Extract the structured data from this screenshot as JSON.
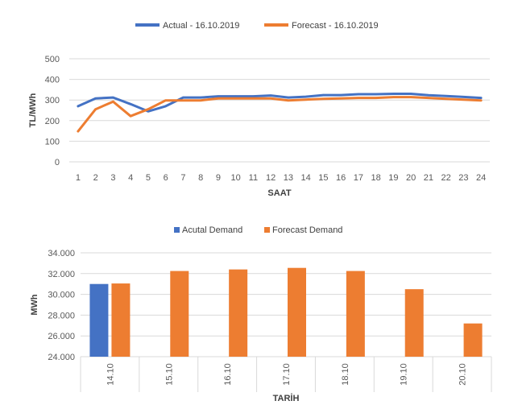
{
  "chart_data": [
    {
      "type": "line",
      "xlabel": "SAAT",
      "ylabel": "TL/MWh",
      "ylim": [
        0,
        500
      ],
      "yticks": [
        0,
        100,
        200,
        300,
        400,
        500
      ],
      "grid": true,
      "legend": "top",
      "x": [
        1,
        2,
        3,
        4,
        5,
        6,
        7,
        8,
        9,
        10,
        11,
        12,
        13,
        14,
        15,
        16,
        17,
        18,
        19,
        20,
        21,
        22,
        23,
        24
      ],
      "series": [
        {
          "name": "Actual - 16.10.2019",
          "color": "#4472C4",
          "values": [
            270,
            308,
            312,
            280,
            245,
            270,
            312,
            312,
            318,
            318,
            318,
            322,
            312,
            316,
            324,
            324,
            328,
            328,
            330,
            330,
            323,
            319,
            315,
            310
          ]
        },
        {
          "name": "Forecast - 16.10.2019",
          "color": "#ED7D31",
          "values": [
            148,
            255,
            292,
            222,
            255,
            298,
            298,
            298,
            308,
            308,
            308,
            308,
            298,
            302,
            306,
            308,
            310,
            310,
            314,
            314,
            310,
            306,
            302,
            298
          ]
        }
      ]
    },
    {
      "type": "bar",
      "xlabel": "TARİH",
      "ylabel": "MWh",
      "ylim": [
        24000,
        34000
      ],
      "yticks": [
        24000,
        26000,
        28000,
        30000,
        32000,
        34000
      ],
      "ytick_labels": [
        "24.000",
        "26.000",
        "28.000",
        "30.000",
        "32.000",
        "34.000"
      ],
      "grid": true,
      "legend": "top",
      "categories": [
        "14.10",
        "15.10",
        "16.10",
        "17.10",
        "18.10",
        "19.10",
        "20.10"
      ],
      "series": [
        {
          "name": "Acutal Demand",
          "color": "#4472C4",
          "values": [
            31000,
            null,
            null,
            null,
            null,
            null,
            null
          ]
        },
        {
          "name": "Forecast Demand",
          "color": "#ED7D31",
          "values": [
            31050,
            32250,
            32400,
            32550,
            32250,
            30500,
            27200
          ]
        }
      ]
    }
  ]
}
